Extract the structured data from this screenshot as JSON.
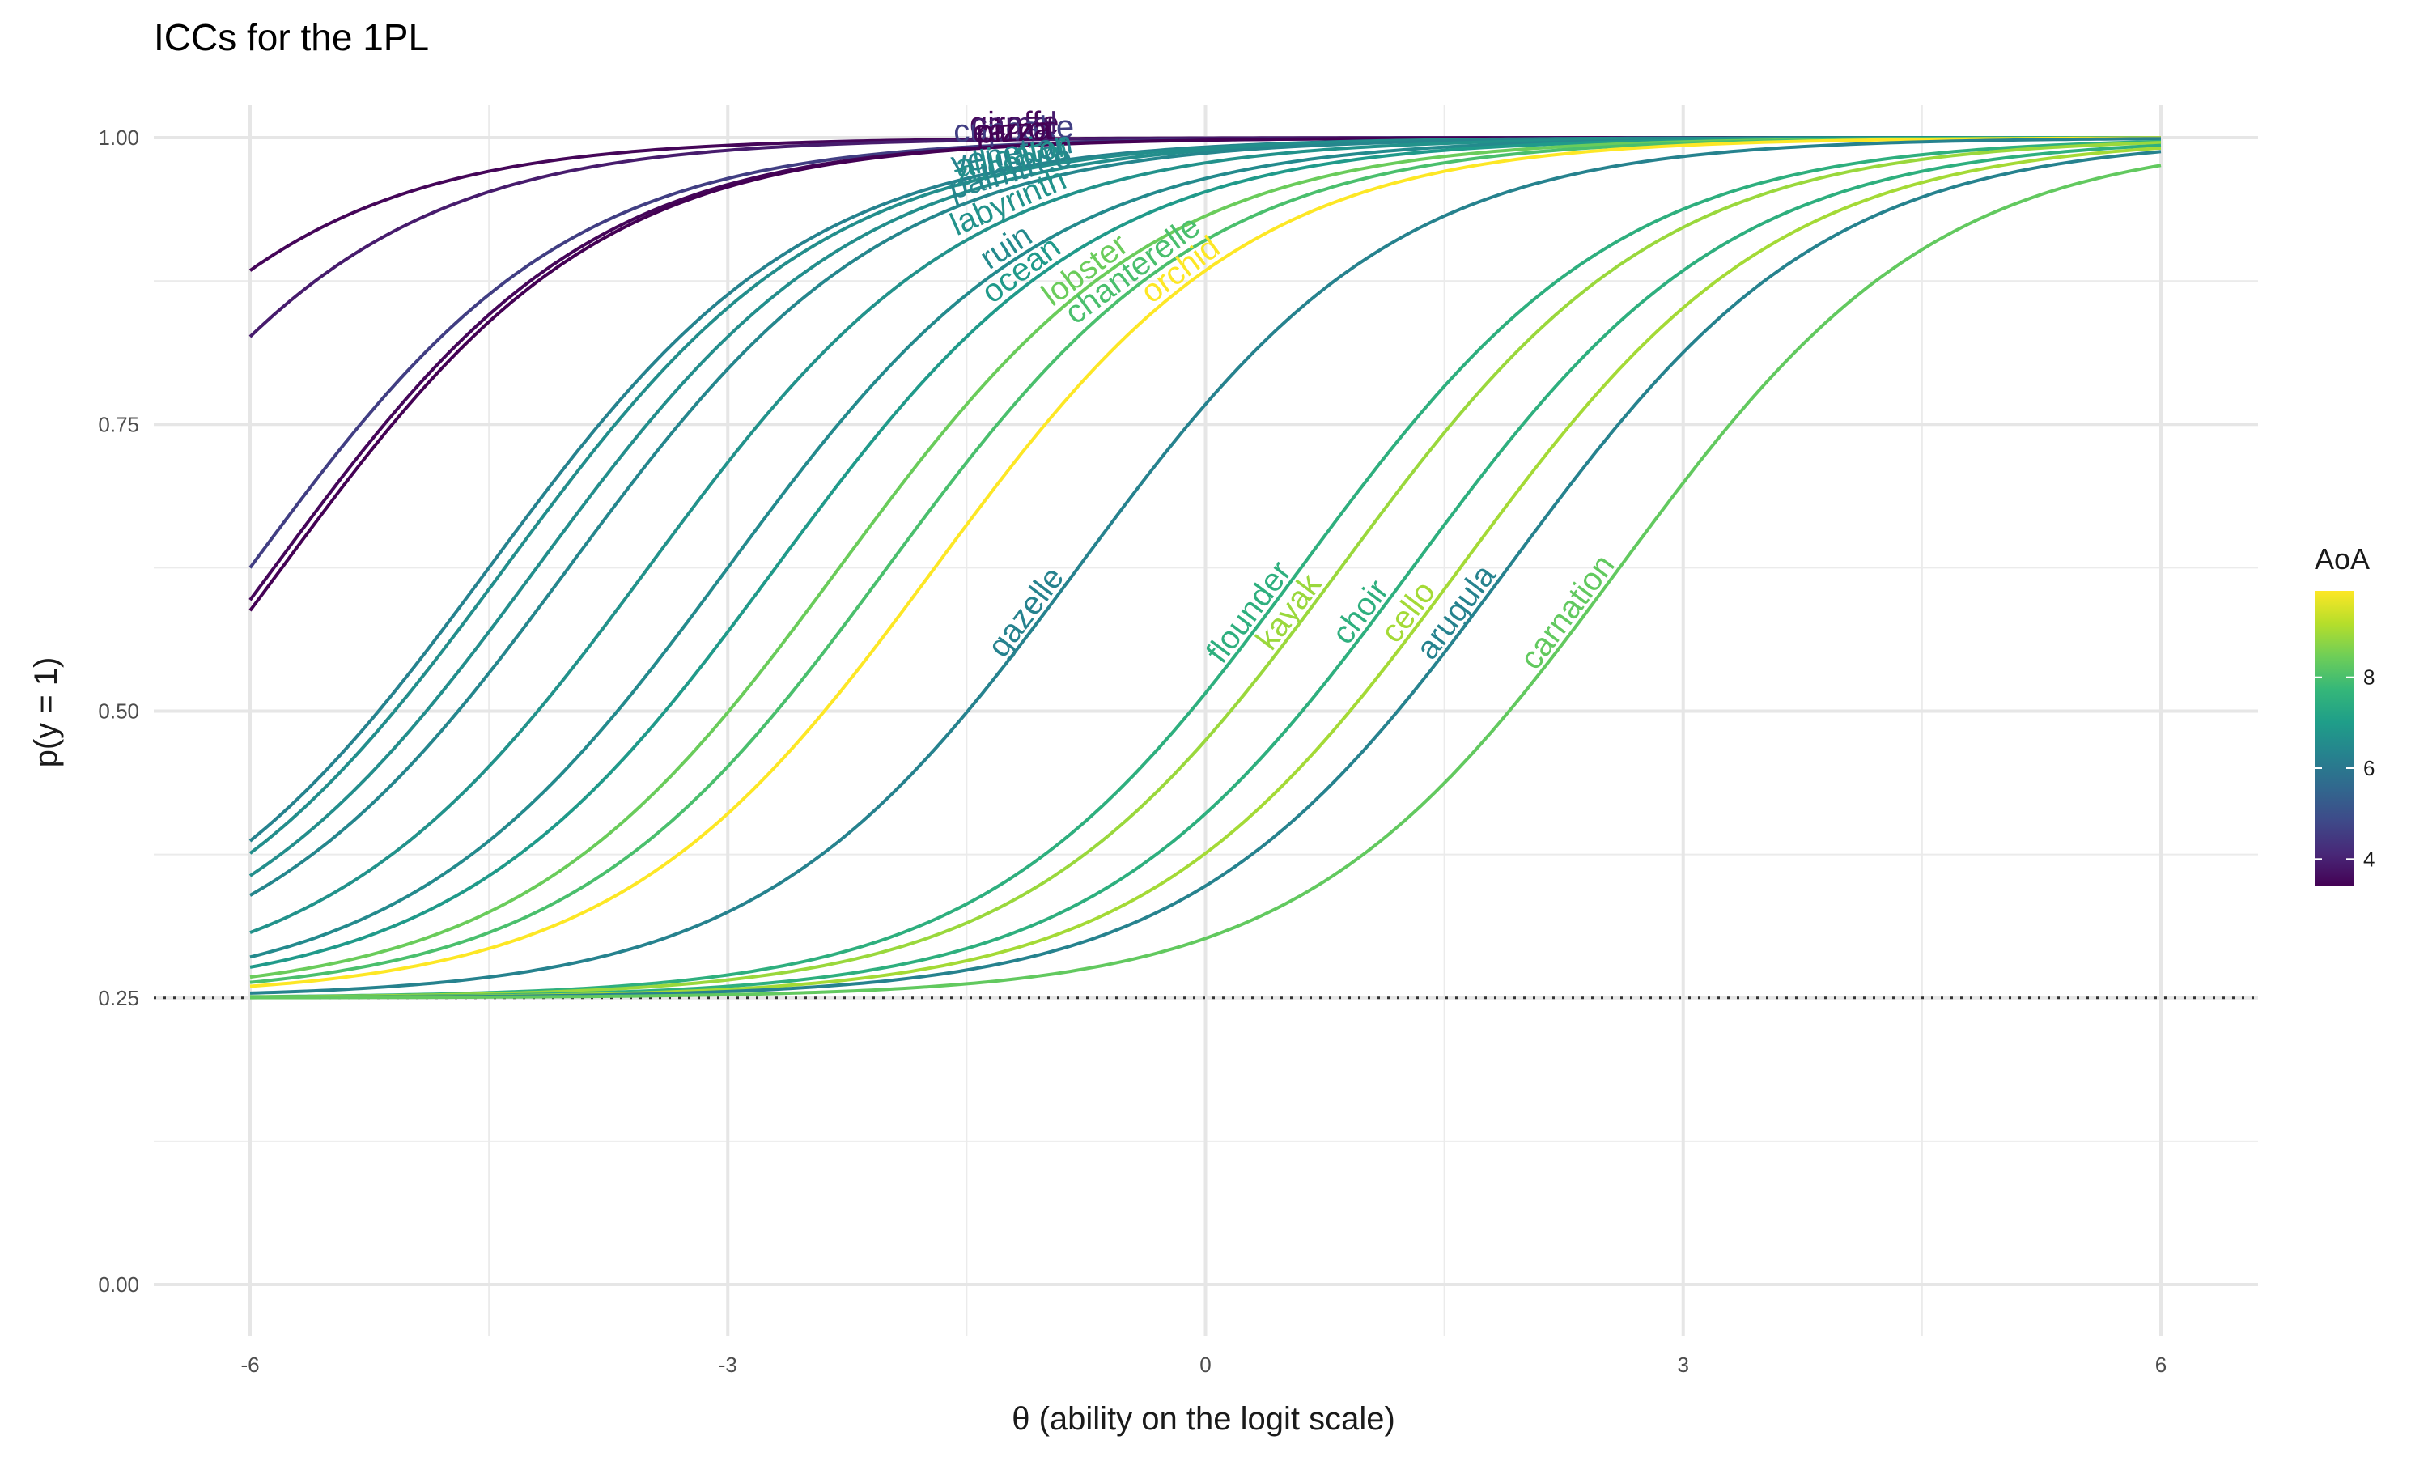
{
  "chart_data": {
    "type": "line",
    "title": "ICCs for the 1PL",
    "xlabel": "θ (ability on the logit scale)",
    "ylabel": "p(y = 1)",
    "xlim": [
      -6,
      6
    ],
    "ylim": [
      0,
      1
    ],
    "x_ticks": [
      -6,
      -3,
      0,
      3,
      6
    ],
    "x_tick_labels": [
      "-6",
      "-3",
      "0",
      "3",
      "6"
    ],
    "y_ticks": [
      0,
      0.25,
      0.5,
      0.75,
      1
    ],
    "y_tick_labels": [
      "0.00",
      "0.25",
      "0.50",
      "0.75",
      "1.00"
    ],
    "grid": true,
    "guessing_line": 0.25,
    "model": "p = 0.25 + 0.75 / (1 + exp(-(theta - b)))",
    "legend": {
      "title": "AoA",
      "placement": "right",
      "ticks": [
        4,
        6,
        8
      ],
      "range": [
        3.4,
        9.9
      ]
    },
    "colors": {
      "viridis": [
        "#440154",
        "#482878",
        "#3e4a89",
        "#31688e",
        "#26828e",
        "#1f9e89",
        "#35b779",
        "#6ece58",
        "#b5de2b",
        "#fde725"
      ]
    },
    "series": [
      {
        "name": "giraffe",
        "b": -7.7,
        "aoa": 3.5
      },
      {
        "name": "camel",
        "b": -7.2,
        "aoa": 3.9
      },
      {
        "name": "cupcake",
        "b": -6.0,
        "aoa": 4.6
      },
      {
        "name": "carrot",
        "b": -5.85,
        "aoa": 3.5
      },
      {
        "name": "pizza",
        "b": -5.8,
        "aoa": 3.4
      },
      {
        "name": "venetian",
        "b": -4.5,
        "aoa": 6.3
      },
      {
        "name": "alligator",
        "b": -4.4,
        "aoa": 6.6
      },
      {
        "name": "zucchini",
        "b": -4.2,
        "aoa": 6.6
      },
      {
        "name": "palmtree",
        "b": -4.0,
        "aoa": 6.4
      },
      {
        "name": "labyrinth",
        "b": -3.5,
        "aoa": 6.7
      },
      {
        "name": "ruin",
        "b": -3.0,
        "aoa": 6.5
      },
      {
        "name": "ocean",
        "b": -2.7,
        "aoa": 6.9
      },
      {
        "name": "lobster",
        "b": -2.3,
        "aoa": 8.4
      },
      {
        "name": "chanterelle",
        "b": -2.0,
        "aoa": 8.0
      },
      {
        "name": "orchid",
        "b": -1.7,
        "aoa": 9.9
      },
      {
        "name": "gazelle",
        "b": -0.8,
        "aoa": 6.3
      },
      {
        "name": "flounder",
        "b": 0.6,
        "aoa": 7.5
      },
      {
        "name": "kayak",
        "b": 0.85,
        "aoa": 8.9
      },
      {
        "name": "choir",
        "b": 1.3,
        "aoa": 7.5
      },
      {
        "name": "cello",
        "b": 1.6,
        "aoa": 9.0
      },
      {
        "name": "arugula",
        "b": 1.9,
        "aoa": 6.3
      },
      {
        "name": "carnation",
        "b": 2.6,
        "aoa": 8.3
      }
    ]
  }
}
